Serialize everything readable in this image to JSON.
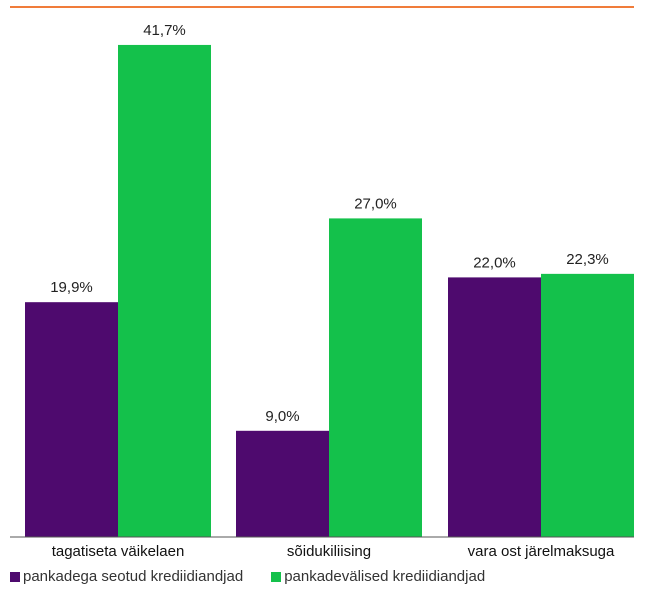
{
  "chart_data": {
    "type": "bar",
    "categories": [
      "tagatiseta väikelaen",
      "sõidukiliising",
      "vara ost järelmaksuga"
    ],
    "series": [
      {
        "name": "pankadega seotud krediidiandjad",
        "values": [
          19.9,
          9.0,
          22.0
        ],
        "labels": [
          "19,9%",
          "9,0%",
          "22,0%"
        ],
        "color": "#4e0a6e"
      },
      {
        "name": "pankadevälised krediidiandjad",
        "values": [
          41.7,
          27.0,
          22.3
        ],
        "labels": [
          "41,7%",
          "27,0%",
          "22,3%"
        ],
        "color": "#14c14b"
      }
    ],
    "ylim": [
      0,
      45
    ],
    "grid": false,
    "legend_position": "bottom-left"
  },
  "colors": {
    "top_rule": "#f07c3a",
    "baseline": "#555555"
  }
}
